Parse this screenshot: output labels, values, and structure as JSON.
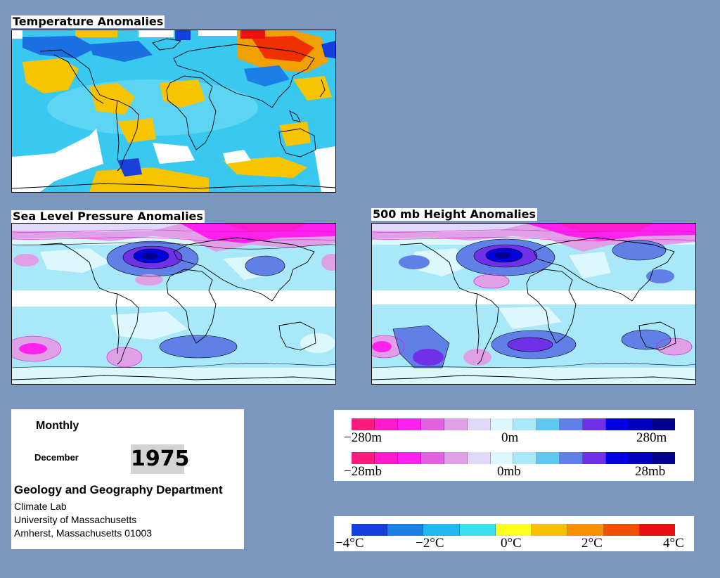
{
  "panels": {
    "temperature": {
      "title": "Temperature Anomalies"
    },
    "slp": {
      "title": "Sea Level Pressure Anomalies"
    },
    "height500": {
      "title": "500 mb Height Anomalies"
    }
  },
  "info": {
    "period": "Monthly",
    "month": "December",
    "year": "1975",
    "department": "Geology and Geography Department",
    "lab": "Climate Lab",
    "university": "University of Massachusetts",
    "address": "Amherst, Massachusetts 01003"
  },
  "legends": {
    "height": {
      "min_label": "−280m",
      "mid_label": "0m",
      "max_label": "280m"
    },
    "pressure": {
      "min_label": "−28mb",
      "mid_label": "0mb",
      "max_label": "28mb"
    },
    "temperature": {
      "labels": [
        "−4°C",
        "−2°C",
        "0°C",
        "2°C",
        "4°C"
      ]
    }
  },
  "colors": {
    "background": "#7b97bd",
    "pressure_scale": [
      "#ff1a80",
      "#ff1acc",
      "#ff22ee",
      "#e060e0",
      "#e0a0e8",
      "#e0d8f8",
      "#dcf8fc",
      "#a8e8f8",
      "#60c8f0",
      "#6080e8",
      "#7030e8",
      "#0000e0",
      "#0000c0",
      "#000090"
    ],
    "temperature_scale": [
      "#1440e0",
      "#1a80e8",
      "#20b8f0",
      "#38e0f0",
      "#ffff20",
      "#f8c000",
      "#f89000",
      "#f05000",
      "#e81010"
    ]
  }
}
